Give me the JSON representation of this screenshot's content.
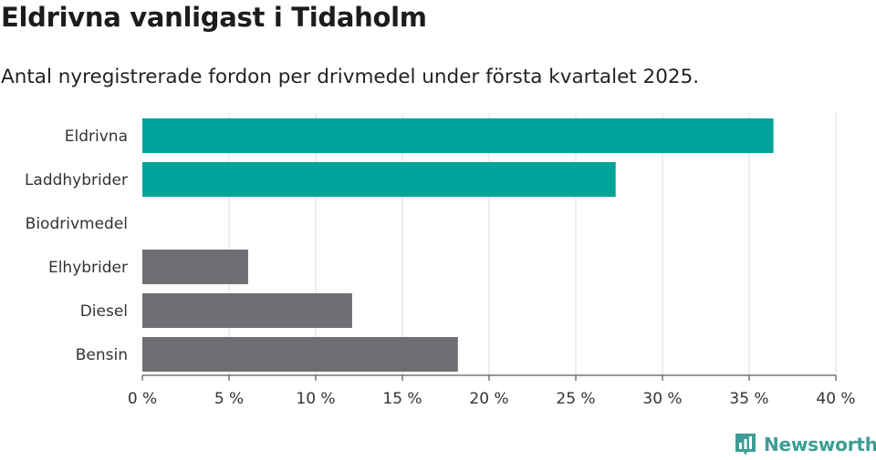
{
  "header": {
    "title": "Eldrivna vanligast i Tidaholm",
    "subtitle": "Antal nyregistrerade fordon per drivmedel under första kvartalet 2025."
  },
  "branding": {
    "name": "Newsworthy",
    "logo_icon": "bar-chart-icon",
    "color": "#3c9e94"
  },
  "chart_data": {
    "type": "bar",
    "orientation": "horizontal",
    "categories": [
      "Eldrivna",
      "Laddhybrider",
      "Biodrivmedel",
      "Elhybrider",
      "Diesel",
      "Bensin"
    ],
    "values": [
      36.4,
      27.3,
      0,
      6.1,
      12.1,
      18.2
    ],
    "colors": [
      "#00a49a",
      "#00a49a",
      "#6e6e73",
      "#6e6e73",
      "#6e6e73",
      "#6e6e73"
    ],
    "xlim": [
      0,
      40
    ],
    "xticks": [
      0,
      5,
      10,
      15,
      20,
      25,
      30,
      35,
      40
    ],
    "tick_labels": [
      "0 %",
      "5 %",
      "10 %",
      "15 %",
      "20 %",
      "25 %",
      "30 %",
      "35 %",
      "40 %"
    ],
    "grid": true
  }
}
